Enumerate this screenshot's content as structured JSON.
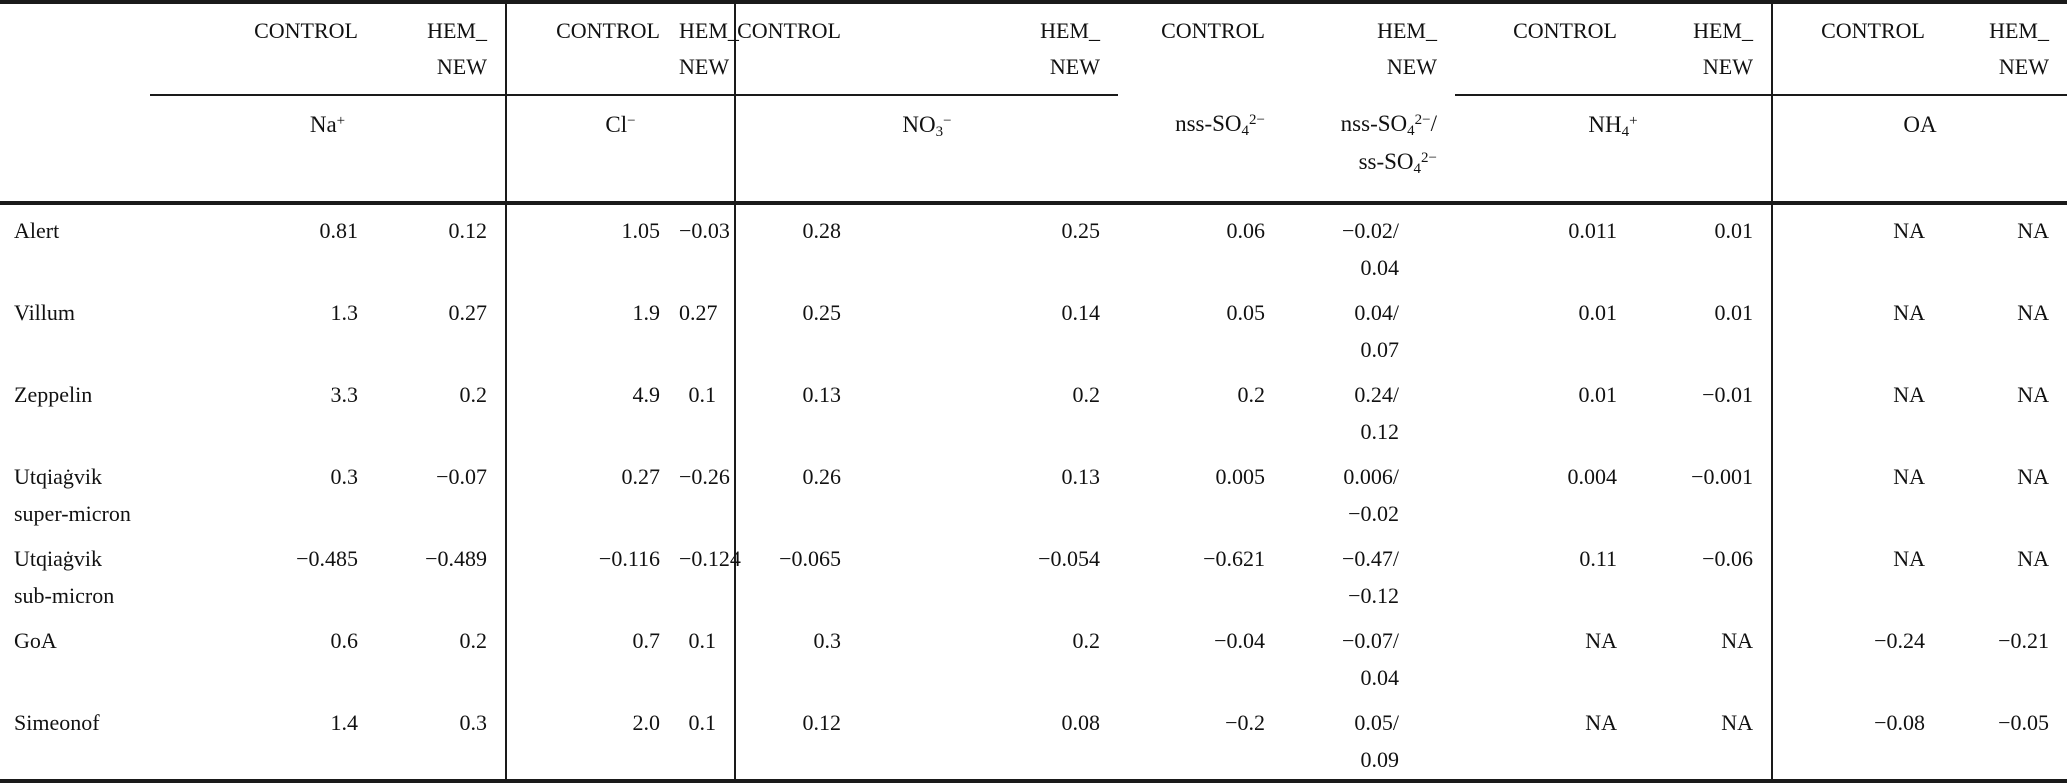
{
  "table": {
    "header": {
      "control_label": "CONTROL",
      "hem_label_lines": [
        "HEM_",
        "NEW"
      ],
      "species": [
        "Na^+^",
        "Cl^−^",
        "NO~3~^−^",
        "nss-SO~4~^2−^",
        "NH~4~^+^",
        "OA"
      ],
      "species_ratio_lines": [
        "nss-SO~4~^2−^/",
        "ss-SO~4~^2−^"
      ]
    },
    "rows": [
      {
        "site_lines": [
          "Alert"
        ],
        "values": [
          "0.81",
          "0.12",
          "1.05",
          "−0.03",
          "0.28",
          "0.25",
          "0.06",
          [
            "−0.02/",
            "0.04"
          ],
          "0.011",
          "0.01",
          "NA",
          "NA"
        ]
      },
      {
        "site_lines": [
          "Villum"
        ],
        "values": [
          "1.3",
          "0.27",
          "1.9",
          "0.27",
          "0.25",
          "0.14",
          "0.05",
          [
            "0.04/",
            "0.07"
          ],
          "0.01",
          "0.01",
          "NA",
          "NA"
        ]
      },
      {
        "site_lines": [
          "Zeppelin"
        ],
        "values": [
          "3.3",
          "0.2",
          "4.9",
          "0.1",
          "0.13",
          "0.2",
          "0.2",
          [
            "0.24/",
            "0.12"
          ],
          "0.01",
          "−0.01",
          "NA",
          "NA"
        ]
      },
      {
        "site_lines": [
          "Utqiaġvik",
          "super-micron"
        ],
        "values": [
          "0.3",
          "−0.07",
          "0.27",
          "−0.26",
          "0.26",
          "0.13",
          "0.005",
          [
            "0.006/",
            "−0.02"
          ],
          "0.004",
          "−0.001",
          "NA",
          "NA"
        ]
      },
      {
        "site_lines": [
          "Utqiaġvik",
          "sub-micron"
        ],
        "values": [
          "−0.485",
          "−0.489",
          "−0.116",
          "−0.124",
          "−0.065",
          "−0.054",
          "−0.621",
          [
            "−0.47/",
            "−0.12"
          ],
          "0.11",
          "−0.06",
          "NA",
          "NA"
        ]
      },
      {
        "site_lines": [
          "GoA"
        ],
        "values": [
          "0.6",
          "0.2",
          "0.7",
          "0.1",
          "0.3",
          "0.2",
          "−0.04",
          [
            "−0.07/",
            "0.04"
          ],
          "NA",
          "NA",
          "−0.24",
          "−0.21"
        ]
      },
      {
        "site_lines": [
          "Simeonof"
        ],
        "values": [
          "1.4",
          "0.3",
          "2.0",
          "0.1",
          "0.12",
          "0.08",
          "−0.2",
          [
            "0.05/",
            "0.09"
          ],
          "NA",
          "NA",
          "−0.08",
          "−0.05"
        ]
      }
    ]
  }
}
